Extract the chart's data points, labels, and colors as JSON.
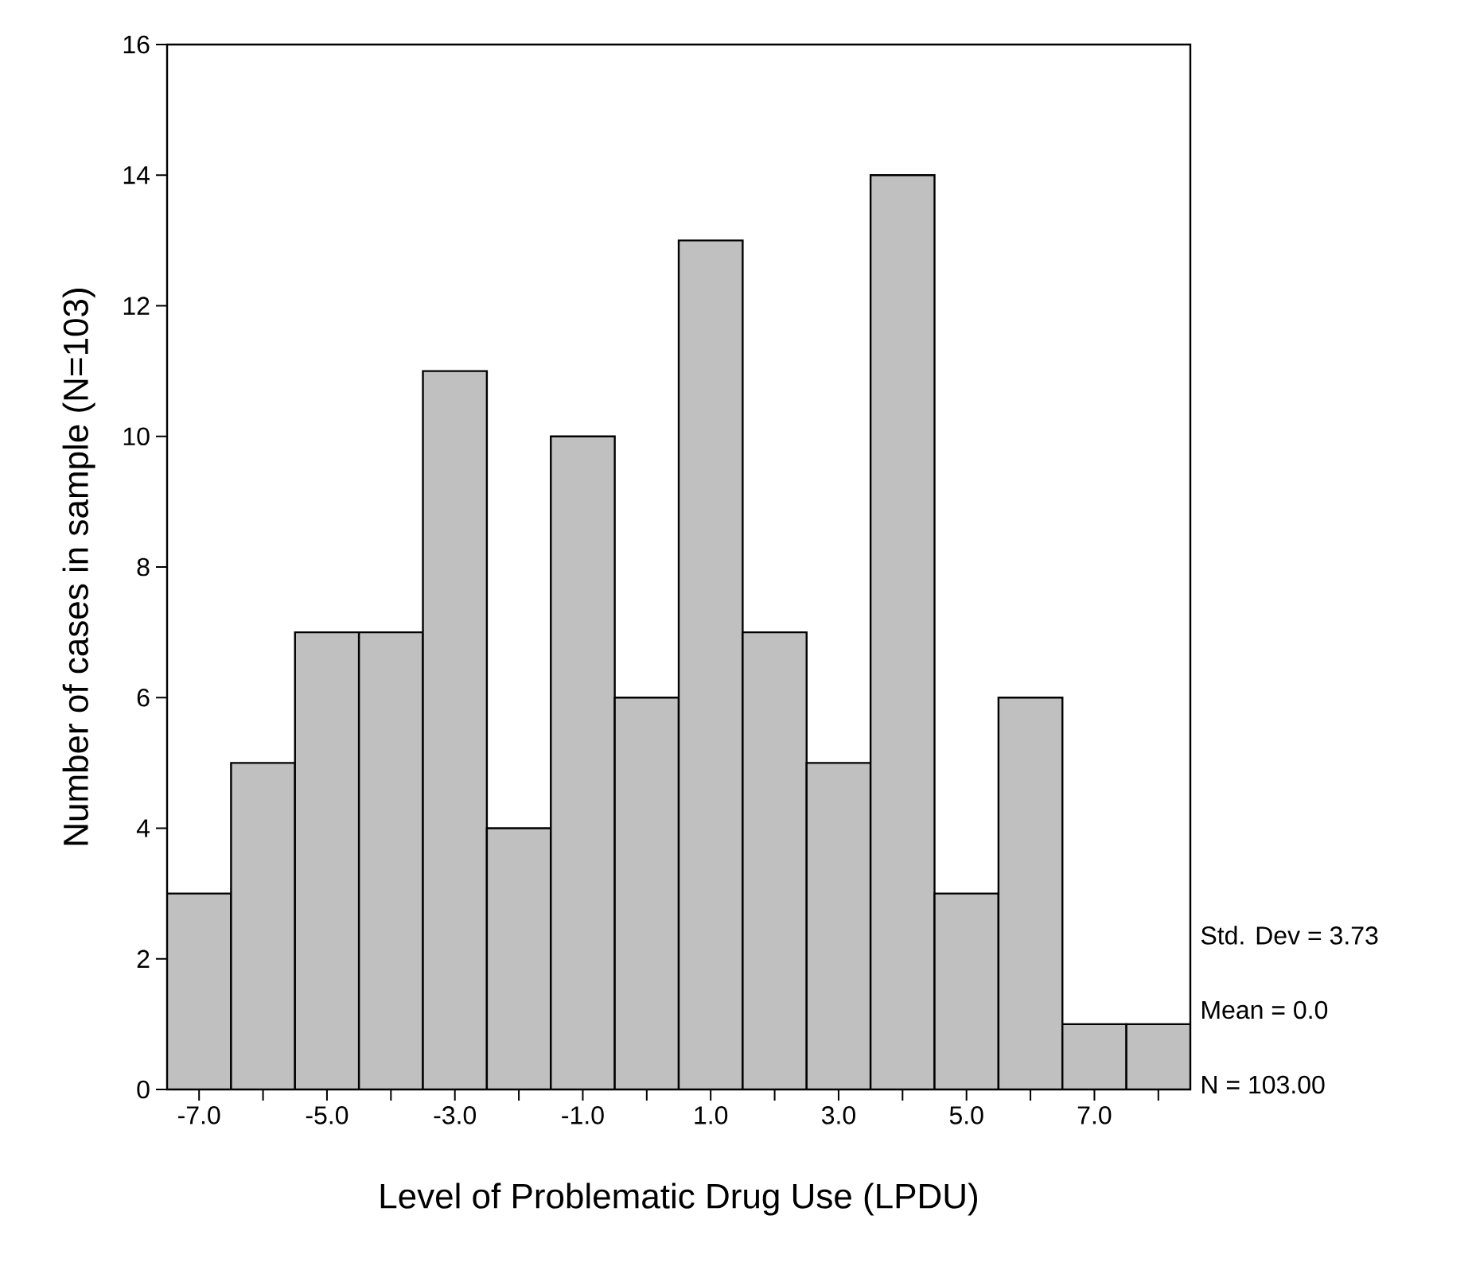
{
  "chart_data": {
    "type": "histogram",
    "xlabel": "Level of Problematic Drug Use (LPDU)",
    "ylabel": "Number of cases in sample (N=103)",
    "bins": [
      -7.5,
      -6.5,
      -5.5,
      -4.5,
      -3.5,
      -2.5,
      -1.5,
      -0.5,
      0.5,
      1.5,
      2.5,
      3.5,
      4.5,
      5.5,
      6.5,
      7.5,
      8.5
    ],
    "values": [
      3,
      5,
      7,
      7,
      11,
      4,
      10,
      6,
      13,
      7,
      5,
      14,
      3,
      6,
      1,
      1
    ],
    "color": "#c0c0c0",
    "xlim": [
      -7.5,
      8.5
    ],
    "ylim": [
      0,
      16
    ],
    "xticks": [
      {
        "value": -7,
        "label": "-7.0"
      },
      {
        "value": -6,
        "label": null
      },
      {
        "value": -5,
        "label": "-5.0"
      },
      {
        "value": -4,
        "label": null
      },
      {
        "value": -3,
        "label": "-3.0"
      },
      {
        "value": -2,
        "label": null
      },
      {
        "value": -1,
        "label": "-1.0"
      },
      {
        "value": 0,
        "label": null
      },
      {
        "value": 1,
        "label": "1.0"
      },
      {
        "value": 2,
        "label": null
      },
      {
        "value": 3,
        "label": "3.0"
      },
      {
        "value": 4,
        "label": null
      },
      {
        "value": 5,
        "label": "5.0"
      },
      {
        "value": 6,
        "label": null
      },
      {
        "value": 7,
        "label": "7.0"
      },
      {
        "value": 8,
        "label": null
      }
    ],
    "yticks": [
      0,
      2,
      4,
      6,
      8,
      10,
      12,
      14,
      16
    ],
    "annotations": [
      "Std. Dev = 3.73",
      "Mean = 0.0",
      "N = 103.00"
    ]
  }
}
